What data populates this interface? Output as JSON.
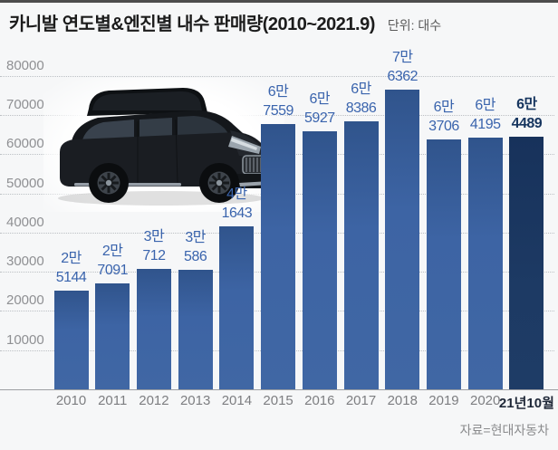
{
  "header": {
    "title": "카니발 연도별&엔진별 내수 판매량(2010~2021.9)",
    "unit_label": "단위: 대수"
  },
  "chart_data": {
    "type": "bar",
    "title": "카니발 연도별&엔진별 내수 판매량(2010~2021.9)",
    "unit": "대수",
    "categories": [
      "2010",
      "2011",
      "2012",
      "2013",
      "2014",
      "2015",
      "2016",
      "2017",
      "2018",
      "2019",
      "2020",
      "21년10월"
    ],
    "values": [
      25144,
      27091,
      30712,
      30586,
      41643,
      67559,
      65927,
      68386,
      76362,
      63706,
      64195,
      64489
    ],
    "value_labels": [
      [
        "2만",
        "5144"
      ],
      [
        "2만",
        "7091"
      ],
      [
        "3만",
        "712"
      ],
      [
        "3만",
        "586"
      ],
      [
        "4만",
        "1643"
      ],
      [
        "6만",
        "7559"
      ],
      [
        "6만",
        "5927"
      ],
      [
        "6만",
        "8386"
      ],
      [
        "7만",
        "6362"
      ],
      [
        "6만",
        "3706"
      ],
      [
        "6만",
        "4195"
      ],
      [
        "6만",
        "4489"
      ]
    ],
    "y_ticks": [
      10000,
      20000,
      30000,
      40000,
      50000,
      60000,
      70000,
      80000
    ],
    "ylim": [
      0,
      83000
    ],
    "grid": "dotted-horizontal",
    "legend": "none",
    "highlight_index": 11,
    "colors": {
      "bar": "#3d64a4",
      "bar_highlight": "#1d3a64",
      "value_label": "#3a64ad",
      "value_label_highlight": "#16355f",
      "axis_label": "#7d7e81",
      "tick_label": "#8f9093"
    }
  },
  "illustration": {
    "name": "black-minivan-kia-carnival",
    "description": "black Kia Carnival hi-limousine minivan photo over chart"
  },
  "footer": {
    "source": "자료=현대자동차"
  }
}
